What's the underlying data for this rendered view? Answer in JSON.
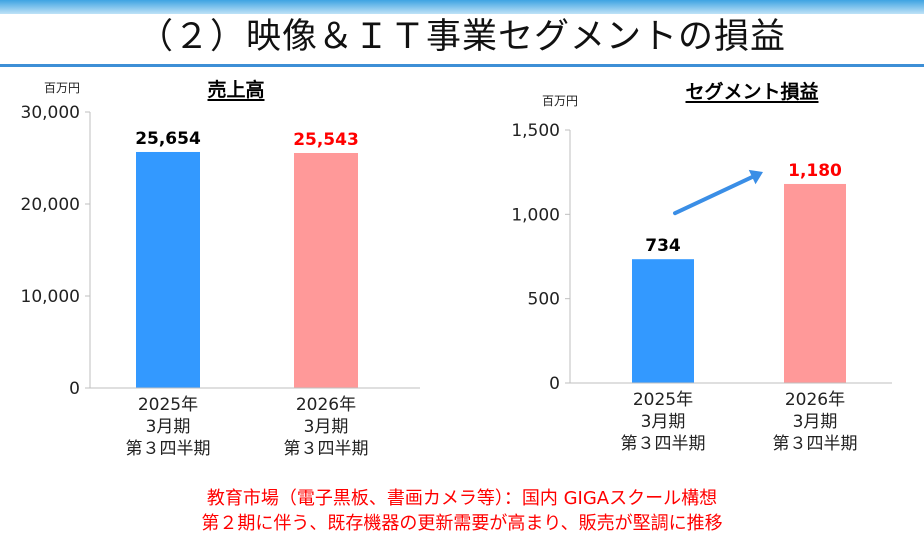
{
  "page": {
    "title": "（２）映像＆ＩＴ事業セグメントの損益",
    "notes": [
      "教育市場（電子黒板、書画カメラ等）：国内 GIGAスクール構想",
      "第２期に伴う、既存機器の更新需要が高まり、販売が堅調に推移"
    ]
  },
  "colors": {
    "prior": "#3399ff",
    "current": "#ff9999",
    "highlight": "#ff0000",
    "arrow": "#3a8ee6"
  },
  "chart_data": [
    {
      "type": "bar",
      "title": "売上高",
      "unit": "百万円",
      "categories": [
        [
          "2025年",
          "3月期",
          "第３四半期"
        ],
        [
          "2026年",
          "3月期",
          "第３四半期"
        ]
      ],
      "values": [
        25654,
        25543
      ],
      "value_labels": [
        "25,654",
        "25,543"
      ],
      "ylim": [
        0,
        30000
      ],
      "yticks": [
        0,
        10000,
        20000,
        30000
      ],
      "ytick_labels": [
        "0",
        "10,000",
        "20,000",
        "30,000"
      ],
      "bar_colors": [
        "#3399ff",
        "#ff9999"
      ],
      "label_colors": [
        "#000000",
        "#ff0000"
      ],
      "grid": false,
      "trend_arrow": false
    },
    {
      "type": "bar",
      "title": "セグメント損益",
      "unit": "百万円",
      "categories": [
        [
          "2025年",
          "3月期",
          "第３四半期"
        ],
        [
          "2026年",
          "3月期",
          "第３四半期"
        ]
      ],
      "values": [
        734,
        1180
      ],
      "value_labels": [
        "734",
        "1,180"
      ],
      "ylim": [
        0,
        1500
      ],
      "yticks": [
        0,
        500,
        1000,
        1500
      ],
      "ytick_labels": [
        "0",
        "500",
        "1,000",
        "1,500"
      ],
      "bar_colors": [
        "#3399ff",
        "#ff9999"
      ],
      "label_colors": [
        "#000000",
        "#ff0000"
      ],
      "grid": false,
      "trend_arrow": true
    }
  ]
}
